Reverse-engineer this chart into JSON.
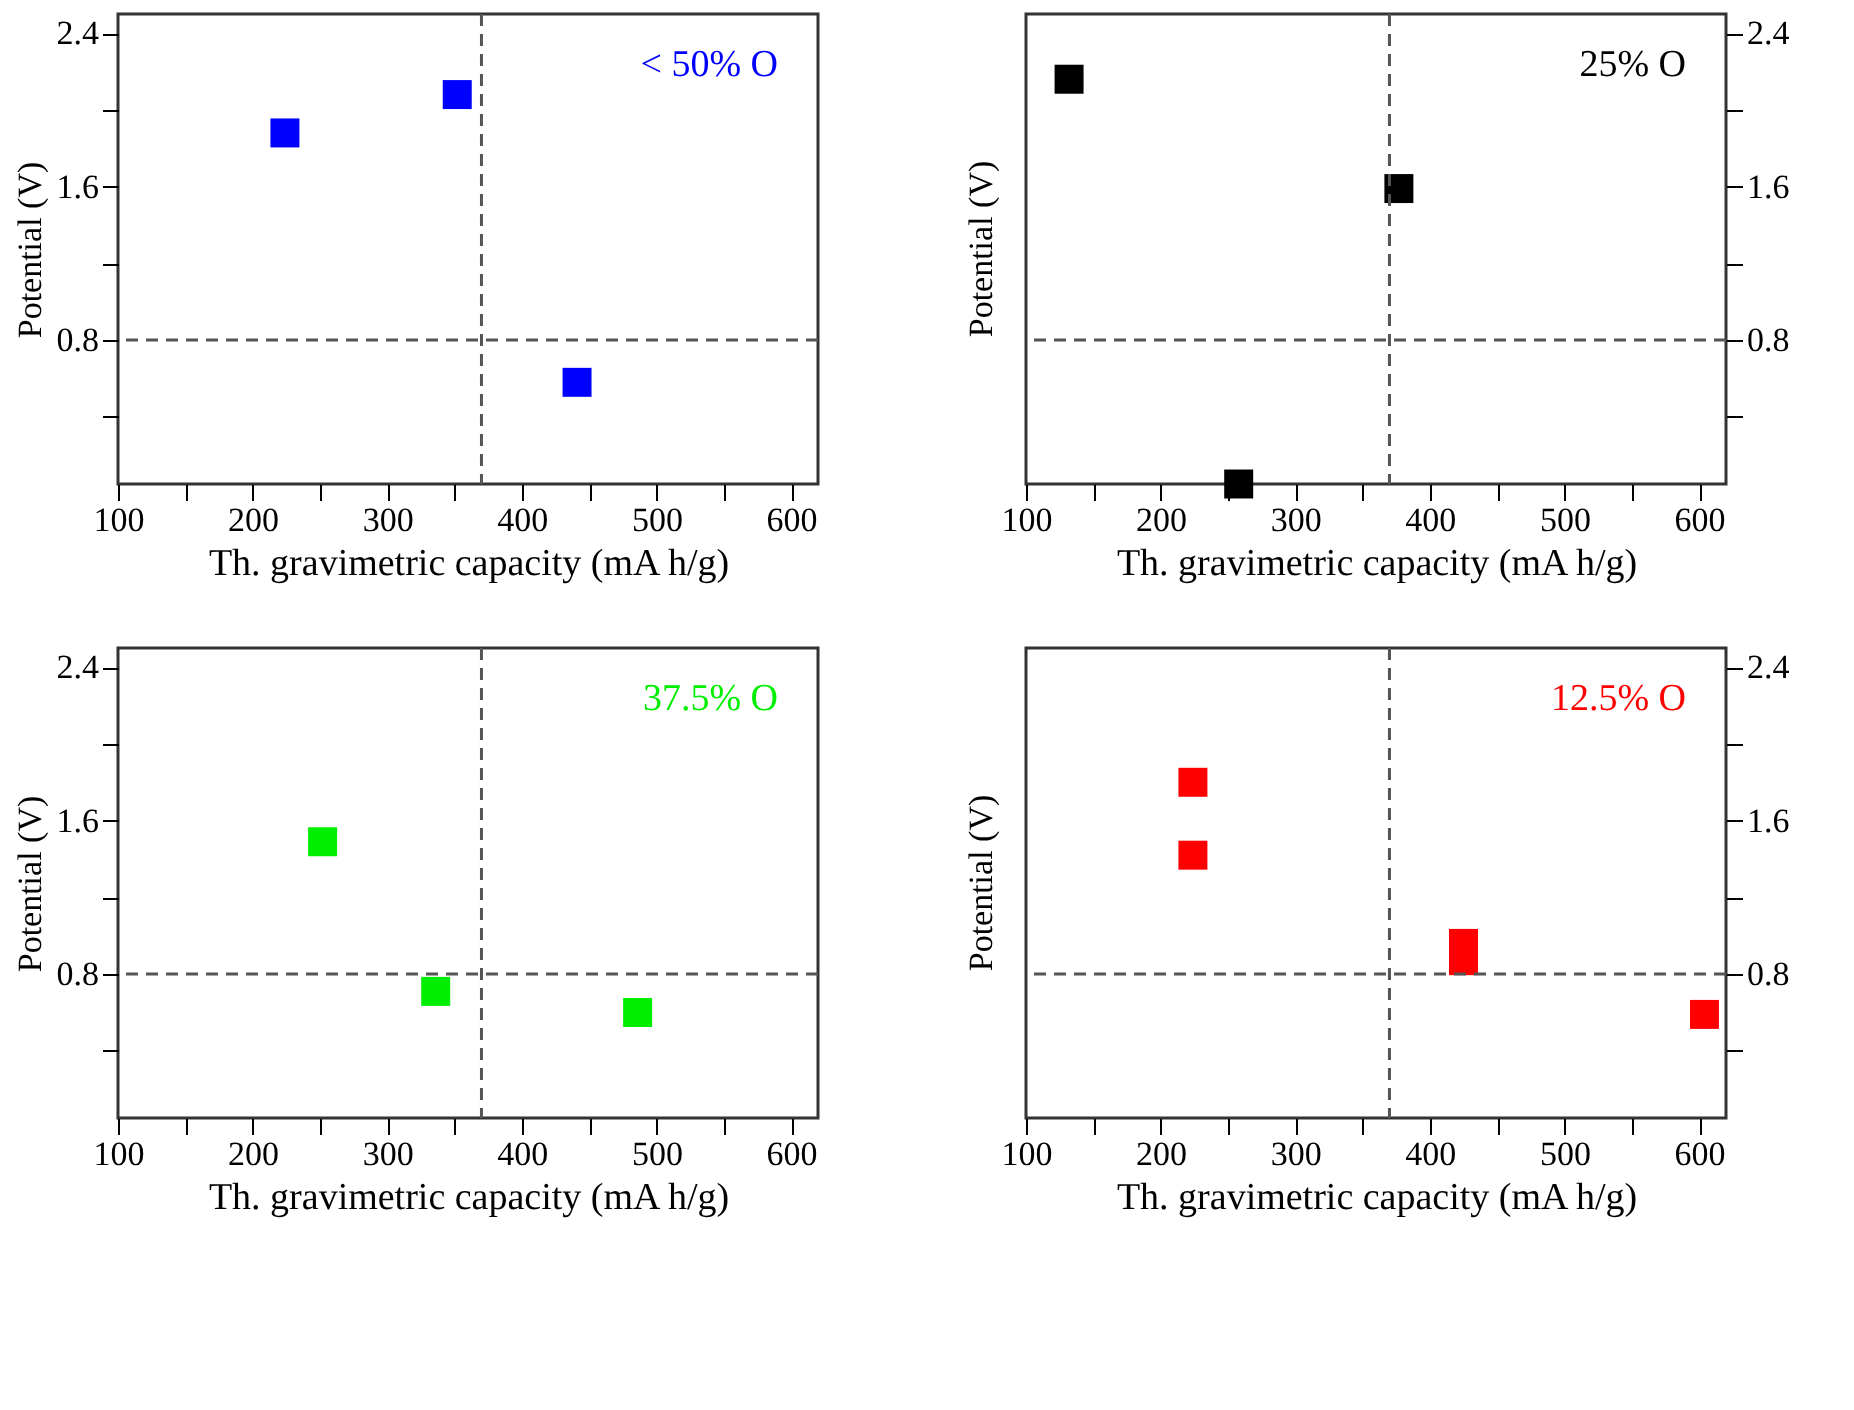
{
  "chart_data": [
    {
      "type": "scatter",
      "xlabel": "Th. gravimetric capacity (mA h/g)",
      "ylabel": "Potential (V)",
      "x": [
        224,
        352,
        441
      ],
      "series": [
        {
          "name": "< 50% O",
          "color": "#0000ff",
          "values": [
            1.88,
            2.08,
            0.58
          ]
        }
      ],
      "xlim": [
        100,
        620
      ],
      "ylim": [
        0.05,
        2.5
      ],
      "xticks": [
        100,
        {
          "value": 150,
          "label": null
        },
        200,
        {
          "value": 250,
          "label": null
        },
        300,
        {
          "value": 350,
          "label": null
        },
        400,
        {
          "value": 450,
          "label": null
        },
        500,
        {
          "value": 550,
          "label": null
        },
        600
      ],
      "yticks": [
        {
          "value": 0.4,
          "label": null
        },
        0.8,
        {
          "value": 1.2,
          "label": null
        },
        1.6,
        {
          "value": 2.0,
          "label": null
        },
        2.4
      ],
      "ref_lines": [
        {
          "axis": "x",
          "value": 370,
          "line_style": "dashed"
        },
        {
          "axis": "y",
          "value": 0.8,
          "line_style": "dashed"
        }
      ],
      "marker": "square",
      "grid": false,
      "legend": false
    },
    {
      "type": "scatter",
      "xlabel": "Th. gravimetric capacity (mA h/g)",
      "ylabel": "Potential (V)",
      "x": [
        132,
        377,
        258
      ],
      "series": [
        {
          "name": "25% O",
          "color": "#000000",
          "values": [
            2.16,
            1.59,
            0.05
          ]
        }
      ],
      "xlim": [
        100,
        620
      ],
      "ylim": [
        0.05,
        2.5
      ],
      "xticks": [
        100,
        {
          "value": 150,
          "label": null
        },
        200,
        {
          "value": 250,
          "label": null
        },
        300,
        {
          "value": 350,
          "label": null
        },
        400,
        {
          "value": 450,
          "label": null
        },
        500,
        {
          "value": 550,
          "label": null
        },
        600
      ],
      "yticks": [
        {
          "value": 0.4,
          "label": null
        },
        0.8,
        {
          "value": 1.2,
          "label": null
        },
        1.6,
        {
          "value": 2.0,
          "label": null
        },
        2.4
      ],
      "ref_lines": [
        {
          "axis": "x",
          "value": 370,
          "line_style": "dashed"
        },
        {
          "axis": "y",
          "value": 0.8,
          "line_style": "dashed"
        }
      ],
      "marker": "square",
      "grid": false,
      "legend": false
    },
    {
      "type": "scatter",
      "xlabel": "Th. gravimetric capacity (mA h/g)",
      "ylabel": "Potential (V)",
      "x": [
        252,
        336,
        486
      ],
      "series": [
        {
          "name": "37.5% O",
          "color": "#00ee00",
          "values": [
            1.49,
            0.71,
            0.6
          ]
        }
      ],
      "xlim": [
        100,
        620
      ],
      "ylim": [
        0.05,
        2.5
      ],
      "xticks": [
        100,
        {
          "value": 150,
          "label": null
        },
        200,
        {
          "value": 250,
          "label": null
        },
        300,
        {
          "value": 350,
          "label": null
        },
        400,
        {
          "value": 450,
          "label": null
        },
        500,
        {
          "value": 550,
          "label": null
        },
        600
      ],
      "yticks": [
        {
          "value": 0.4,
          "label": null
        },
        0.8,
        {
          "value": 1.2,
          "label": null
        },
        1.6,
        {
          "value": 2.0,
          "label": null
        },
        2.4
      ],
      "ref_lines": [
        {
          "axis": "x",
          "value": 370,
          "line_style": "dashed"
        },
        {
          "axis": "y",
          "value": 0.8,
          "line_style": "dashed"
        }
      ],
      "marker": "square",
      "grid": false,
      "legend": false
    },
    {
      "type": "scatter",
      "xlabel": "Th. gravimetric capacity (mA h/g)",
      "ylabel": "Potential (V)",
      "x": [
        224,
        224,
        425,
        425,
        604
      ],
      "series": [
        {
          "name": "12.5% O",
          "color": "#ff0000",
          "values": [
            1.8,
            1.42,
            0.96,
            0.87,
            0.59
          ]
        }
      ],
      "xlim": [
        100,
        620
      ],
      "ylim": [
        0.05,
        2.5
      ],
      "xticks": [
        100,
        {
          "value": 150,
          "label": null
        },
        200,
        {
          "value": 250,
          "label": null
        },
        300,
        {
          "value": 350,
          "label": null
        },
        400,
        {
          "value": 450,
          "label": null
        },
        500,
        {
          "value": 550,
          "label": null
        },
        600
      ],
      "yticks": [
        {
          "value": 0.4,
          "label": null
        },
        0.8,
        {
          "value": 1.2,
          "label": null
        },
        1.6,
        {
          "value": 2.0,
          "label": null
        },
        2.4
      ],
      "ref_lines": [
        {
          "axis": "x",
          "value": 370,
          "line_style": "dashed"
        },
        {
          "axis": "y",
          "value": 0.8,
          "line_style": "dashed"
        }
      ],
      "marker": "square",
      "grid": false,
      "legend": false
    }
  ]
}
